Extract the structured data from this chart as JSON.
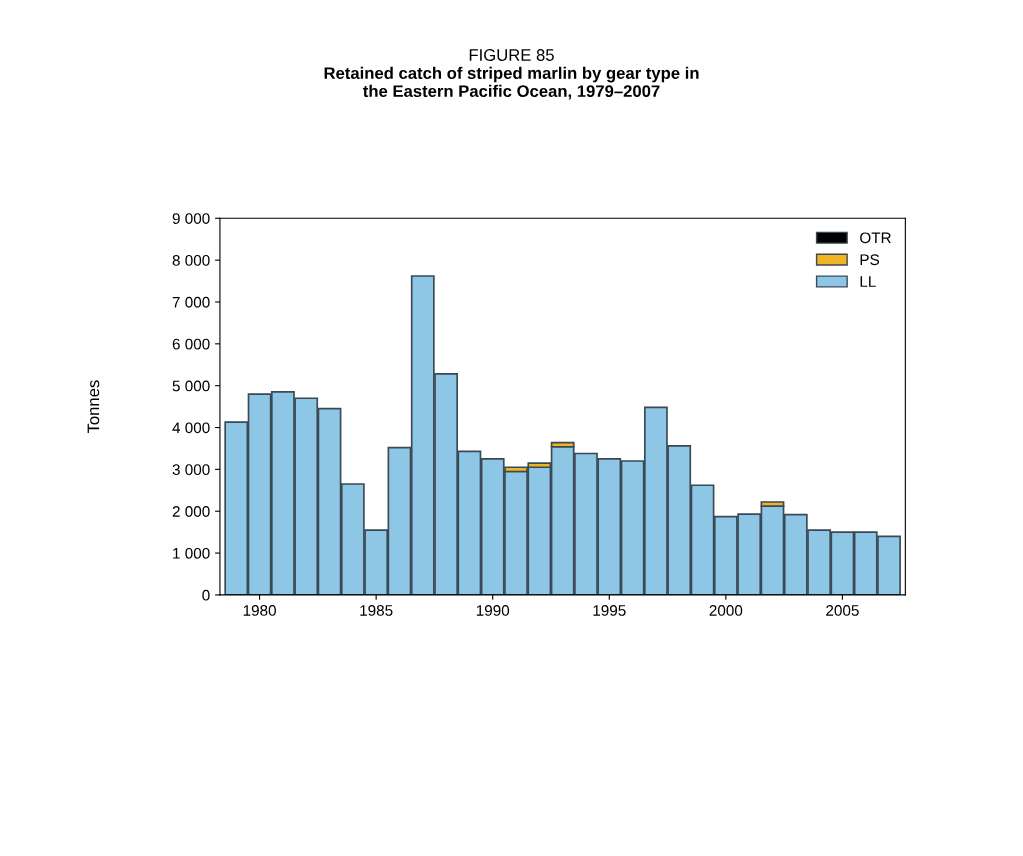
{
  "chart_data": {
    "type": "bar",
    "stacked": true,
    "title": "FIGURE 85",
    "subtitle": "Retained catch of striped marlin by gear type in\nthe Eastern Pacific Ocean, 1979–2007",
    "ylabel": "Tonnes",
    "x": [
      1979,
      1980,
      1981,
      1982,
      1983,
      1984,
      1985,
      1986,
      1987,
      1988,
      1989,
      1990,
      1991,
      1992,
      1993,
      1994,
      1995,
      1996,
      1997,
      1998,
      1999,
      2000,
      2001,
      2002,
      2003,
      2004,
      2005,
      2006,
      2007
    ],
    "series": [
      {
        "name": "LL",
        "color": "#8ec6e6",
        "values": [
          4130,
          4800,
          4850,
          4700,
          4450,
          2650,
          1550,
          3520,
          7620,
          5280,
          3430,
          3250,
          2950,
          3050,
          3540,
          3380,
          3250,
          3200,
          4480,
          3560,
          2620,
          1870,
          1930,
          2120,
          1920,
          1550,
          1500,
          1500,
          1400
        ]
      },
      {
        "name": "PS",
        "color": "#f0b323",
        "values": [
          null,
          null,
          null,
          null,
          null,
          null,
          null,
          null,
          null,
          null,
          null,
          null,
          100,
          100,
          100,
          null,
          null,
          null,
          null,
          null,
          null,
          null,
          null,
          100,
          null,
          null,
          null,
          null,
          null
        ]
      },
      {
        "name": "OTR",
        "color": "#000000",
        "values": [
          null,
          null,
          null,
          null,
          null,
          null,
          null,
          null,
          null,
          null,
          null,
          null,
          null,
          null,
          null,
          null,
          null,
          null,
          null,
          null,
          null,
          null,
          null,
          null,
          null,
          null,
          null,
          null,
          null
        ]
      }
    ],
    "xlim": [
      1978.3,
      2007.7
    ],
    "xticks": [
      1980,
      1985,
      1990,
      1995,
      2000,
      2005
    ],
    "ylim": [
      0,
      9000
    ],
    "yticks": [
      {
        "value": 0,
        "label": "0"
      },
      {
        "value": 1000,
        "label": "1 000"
      },
      {
        "value": 2000,
        "label": "2 000"
      },
      {
        "value": 3000,
        "label": "3 000"
      },
      {
        "value": 4000,
        "label": "4 000"
      },
      {
        "value": 5000,
        "label": "5 000"
      },
      {
        "value": 6000,
        "label": "6 000"
      },
      {
        "value": 7000,
        "label": "7 000"
      },
      {
        "value": 8000,
        "label": "8 000"
      },
      {
        "value": 9000,
        "label": "9 000"
      }
    ],
    "grid": false,
    "legend": "top right"
  }
}
